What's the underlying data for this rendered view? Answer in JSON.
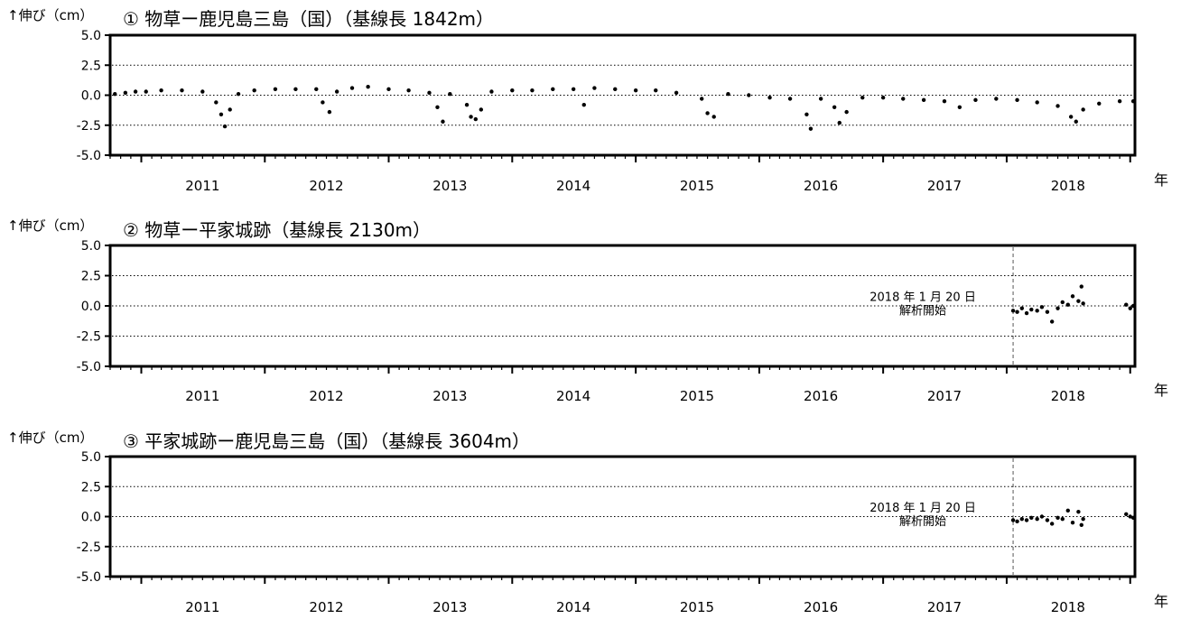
{
  "unit_label": "↑伸び（cm）",
  "x_unit": "年",
  "y_ticks": [
    "5.0",
    "2.5",
    "0.0",
    "-2.5",
    "-5.0"
  ],
  "x_ticks": [
    "2011",
    "2012",
    "2013",
    "2014",
    "2015",
    "2016",
    "2017",
    "2018"
  ],
  "chart_data": [
    {
      "type": "scatter",
      "title": "① 物草ー鹿児島三島（国）（基線長 1842m）",
      "xlabel": "年",
      "ylabel": "↑伸び（cm）",
      "xlim": [
        "2010-10-01",
        "2019-01-15"
      ],
      "ylim": [
        -5.0,
        5.0
      ],
      "grid": "dotted horizontal at ±2.5 and 0.0",
      "legend": "none",
      "annotation": null,
      "series": [
        {
          "color": "#000000",
          "points": [
            [
              "2010-10-15",
              0.1
            ],
            [
              "2010-11-15",
              0.2
            ],
            [
              "2010-12-15",
              0.3
            ],
            [
              "2011-01-15",
              0.3
            ],
            [
              "2011-03-01",
              0.4
            ],
            [
              "2011-05-01",
              0.4
            ],
            [
              "2011-07-01",
              0.3
            ],
            [
              "2011-08-10",
              -0.6
            ],
            [
              "2011-08-25",
              -1.6
            ],
            [
              "2011-09-05",
              -2.6
            ],
            [
              "2011-09-20",
              -1.2
            ],
            [
              "2011-10-15",
              0.1
            ],
            [
              "2011-12-01",
              0.4
            ],
            [
              "2012-02-01",
              0.5
            ],
            [
              "2012-04-01",
              0.5
            ],
            [
              "2012-06-01",
              0.5
            ],
            [
              "2012-06-20",
              -0.6
            ],
            [
              "2012-07-10",
              -1.4
            ],
            [
              "2012-08-01",
              0.3
            ],
            [
              "2012-09-15",
              0.6
            ],
            [
              "2012-11-01",
              0.7
            ],
            [
              "2013-01-01",
              0.5
            ],
            [
              "2013-03-01",
              0.4
            ],
            [
              "2013-05-01",
              0.2
            ],
            [
              "2013-05-25",
              -1.0
            ],
            [
              "2013-06-10",
              -2.2
            ],
            [
              "2013-07-01",
              0.1
            ],
            [
              "2013-08-20",
              -0.8
            ],
            [
              "2013-09-01",
              -1.8
            ],
            [
              "2013-09-15",
              -2.0
            ],
            [
              "2013-10-01",
              -1.2
            ],
            [
              "2013-11-01",
              0.3
            ],
            [
              "2014-01-01",
              0.4
            ],
            [
              "2014-03-01",
              0.4
            ],
            [
              "2014-05-01",
              0.5
            ],
            [
              "2014-07-01",
              0.5
            ],
            [
              "2014-08-01",
              -0.8
            ],
            [
              "2014-09-01",
              0.6
            ],
            [
              "2014-11-01",
              0.5
            ],
            [
              "2015-01-01",
              0.4
            ],
            [
              "2015-03-01",
              0.4
            ],
            [
              "2015-05-01",
              0.2
            ],
            [
              "2015-07-15",
              -0.3
            ],
            [
              "2015-08-01",
              -1.5
            ],
            [
              "2015-08-20",
              -1.8
            ],
            [
              "2015-10-01",
              0.1
            ],
            [
              "2015-12-01",
              0.0
            ],
            [
              "2016-02-01",
              -0.2
            ],
            [
              "2016-04-01",
              -0.3
            ],
            [
              "2016-05-20",
              -1.6
            ],
            [
              "2016-06-01",
              -2.8
            ],
            [
              "2016-07-01",
              -0.3
            ],
            [
              "2016-08-10",
              -1.0
            ],
            [
              "2016-08-25",
              -2.3
            ],
            [
              "2016-09-15",
              -1.4
            ],
            [
              "2016-11-01",
              -0.2
            ],
            [
              "2017-01-01",
              -0.2
            ],
            [
              "2017-03-01",
              -0.3
            ],
            [
              "2017-05-01",
              -0.4
            ],
            [
              "2017-07-01",
              -0.5
            ],
            [
              "2017-08-15",
              -1.0
            ],
            [
              "2017-10-01",
              -0.4
            ],
            [
              "2017-12-01",
              -0.3
            ],
            [
              "2018-02-01",
              -0.4
            ],
            [
              "2018-04-01",
              -0.6
            ],
            [
              "2018-06-01",
              -0.9
            ],
            [
              "2018-07-10",
              -1.8
            ],
            [
              "2018-07-25",
              -2.2
            ],
            [
              "2018-08-15",
              -1.2
            ],
            [
              "2018-10-01",
              -0.7
            ],
            [
              "2018-12-01",
              -0.5
            ],
            [
              "2019-01-10",
              -0.5
            ]
          ]
        }
      ]
    },
    {
      "type": "scatter",
      "title": "② 物草ー平家城跡（基線長 2130m）",
      "xlabel": "年",
      "ylabel": "↑伸び（cm）",
      "xlim": [
        "2010-10-01",
        "2019-01-15"
      ],
      "ylim": [
        -5.0,
        5.0
      ],
      "grid": "dotted horizontal at ±2.5 and 0.0",
      "legend": "none",
      "annotation": {
        "x": "2018-01-20",
        "text_line1": "2018 年 1 月 20 日",
        "text_line2": "解析開始"
      },
      "series": [
        {
          "color": "#000000",
          "points": [
            [
              "2018-01-20",
              -0.4
            ],
            [
              "2018-02-01",
              -0.5
            ],
            [
              "2018-02-15",
              -0.2
            ],
            [
              "2018-03-01",
              -0.6
            ],
            [
              "2018-03-15",
              -0.3
            ],
            [
              "2018-04-01",
              -0.4
            ],
            [
              "2018-04-15",
              -0.1
            ],
            [
              "2018-05-01",
              -0.5
            ],
            [
              "2018-05-15",
              -1.3
            ],
            [
              "2018-06-01",
              -0.2
            ],
            [
              "2018-06-15",
              0.3
            ],
            [
              "2018-07-01",
              0.1
            ],
            [
              "2018-07-15",
              0.8
            ],
            [
              "2018-08-01",
              0.4
            ],
            [
              "2018-08-10",
              1.6
            ],
            [
              "2018-08-15",
              0.2
            ],
            [
              "2018-12-20",
              0.1
            ],
            [
              "2019-01-01",
              -0.2
            ],
            [
              "2019-01-10",
              0.0
            ]
          ]
        }
      ]
    },
    {
      "type": "scatter",
      "title": "③ 平家城跡ー鹿児島三島（国）（基線長 3604m）",
      "xlabel": "年",
      "ylabel": "↑伸び（cm）",
      "xlim": [
        "2010-10-01",
        "2019-01-15"
      ],
      "ylim": [
        -5.0,
        5.0
      ],
      "grid": "dotted horizontal at ±2.5 and 0.0",
      "legend": "none",
      "annotation": {
        "x": "2018-01-20",
        "text_line1": "2018 年 1 月 20 日",
        "text_line2": "解析開始"
      },
      "series": [
        {
          "color": "#000000",
          "points": [
            [
              "2018-01-20",
              -0.3
            ],
            [
              "2018-02-01",
              -0.4
            ],
            [
              "2018-02-15",
              -0.2
            ],
            [
              "2018-03-01",
              -0.3
            ],
            [
              "2018-03-15",
              -0.1
            ],
            [
              "2018-04-01",
              -0.2
            ],
            [
              "2018-04-15",
              0.0
            ],
            [
              "2018-05-01",
              -0.3
            ],
            [
              "2018-05-15",
              -0.6
            ],
            [
              "2018-06-01",
              -0.1
            ],
            [
              "2018-06-15",
              -0.2
            ],
            [
              "2018-07-01",
              0.5
            ],
            [
              "2018-07-15",
              -0.5
            ],
            [
              "2018-08-01",
              0.4
            ],
            [
              "2018-08-10",
              -0.7
            ],
            [
              "2018-08-15",
              -0.2
            ],
            [
              "2018-12-20",
              0.2
            ],
            [
              "2019-01-01",
              0.0
            ],
            [
              "2019-01-10",
              -0.1
            ]
          ]
        }
      ]
    }
  ]
}
